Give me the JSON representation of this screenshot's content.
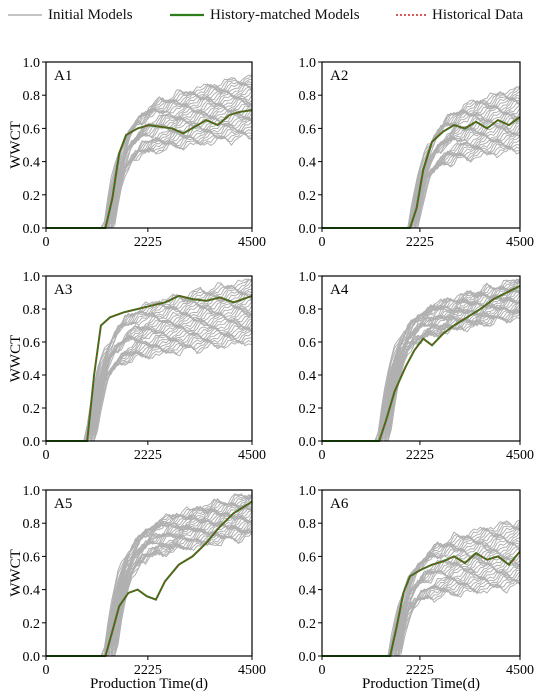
{
  "legend": {
    "initial": "Initial Models",
    "matched": "History-matched Models",
    "historical": "Historical Data"
  },
  "colors": {
    "initial": "#b0b0b0",
    "matched": "#2d7d1a",
    "historical": "#cc2222",
    "frame": "#000000"
  },
  "shared": {
    "ylabel": "WWCT",
    "xlabel": "Production Time(d)"
  },
  "chart_data": [
    {
      "type": "line",
      "id": "A1",
      "label": "A1",
      "xlim": [
        0,
        4500
      ],
      "ylim": [
        0,
        1.0
      ],
      "xticks": [
        0,
        2225,
        4500
      ],
      "yticks": [
        0.0,
        0.2,
        0.4,
        0.6,
        0.8,
        1.0
      ],
      "matched_x": [
        0,
        1300,
        1450,
        1600,
        1750,
        2000,
        2250,
        2500,
        2750,
        3000,
        3250,
        3500,
        3750,
        4000,
        4250,
        4500
      ],
      "matched_y": [
        0,
        0,
        0.18,
        0.45,
        0.56,
        0.6,
        0.62,
        0.61,
        0.6,
        0.57,
        0.61,
        0.65,
        0.62,
        0.68,
        0.7,
        0.71
      ],
      "ensemble_low": 0.55,
      "ensemble_high": 0.92,
      "onset_range": [
        1250,
        1500
      ]
    },
    {
      "type": "line",
      "id": "A2",
      "label": "A2",
      "xlim": [
        0,
        4500
      ],
      "ylim": [
        0,
        1.0
      ],
      "xticks": [
        0,
        2225,
        4500
      ],
      "yticks": [
        0.0,
        0.2,
        0.4,
        0.6,
        0.8,
        1.0
      ],
      "matched_x": [
        0,
        2000,
        2150,
        2300,
        2500,
        2750,
        3000,
        3250,
        3500,
        3750,
        4000,
        4250,
        4500
      ],
      "matched_y": [
        0,
        0,
        0.12,
        0.35,
        0.52,
        0.58,
        0.62,
        0.6,
        0.64,
        0.6,
        0.65,
        0.62,
        0.67
      ],
      "ensemble_low": 0.47,
      "ensemble_high": 0.85,
      "onset_range": [
        1950,
        2200
      ]
    },
    {
      "type": "line",
      "id": "A3",
      "label": "A3",
      "xlim": [
        0,
        4500
      ],
      "ylim": [
        0,
        1.0
      ],
      "xticks": [
        0,
        2225,
        4500
      ],
      "yticks": [
        0.0,
        0.2,
        0.4,
        0.6,
        0.8,
        1.0
      ],
      "matched_x": [
        0,
        900,
        1050,
        1200,
        1400,
        1700,
        2000,
        2300,
        2600,
        2900,
        3200,
        3500,
        3800,
        4100,
        4500
      ],
      "matched_y": [
        0,
        0,
        0.4,
        0.7,
        0.75,
        0.78,
        0.8,
        0.82,
        0.84,
        0.88,
        0.86,
        0.85,
        0.87,
        0.84,
        0.88
      ],
      "ensemble_low": 0.6,
      "ensemble_high": 0.98,
      "onset_range": [
        850,
        1100
      ]
    },
    {
      "type": "line",
      "id": "A4",
      "label": "A4",
      "xlim": [
        0,
        4500
      ],
      "ylim": [
        0,
        1.0
      ],
      "xticks": [
        0,
        2225,
        4500
      ],
      "yticks": [
        0.0,
        0.2,
        0.4,
        0.6,
        0.8,
        1.0
      ],
      "matched_x": [
        0,
        1300,
        1450,
        1650,
        1900,
        2100,
        2300,
        2500,
        2750,
        3000,
        3300,
        3600,
        3900,
        4200,
        4500
      ],
      "matched_y": [
        0,
        0,
        0.12,
        0.3,
        0.45,
        0.55,
        0.62,
        0.58,
        0.65,
        0.7,
        0.75,
        0.8,
        0.86,
        0.9,
        0.94
      ],
      "ensemble_low": 0.75,
      "ensemble_high": 0.98,
      "onset_range": [
        1250,
        1550
      ]
    },
    {
      "type": "line",
      "id": "A5",
      "label": "A5",
      "xlim": [
        0,
        4500
      ],
      "ylim": [
        0,
        1.0
      ],
      "xticks": [
        0,
        2225,
        4500
      ],
      "yticks": [
        0.0,
        0.2,
        0.4,
        0.6,
        0.8,
        1.0
      ],
      "matched_x": [
        0,
        1300,
        1450,
        1600,
        1800,
        2000,
        2200,
        2400,
        2600,
        2900,
        3200,
        3500,
        3800,
        4100,
        4500
      ],
      "matched_y": [
        0,
        0,
        0.15,
        0.3,
        0.38,
        0.4,
        0.36,
        0.34,
        0.45,
        0.55,
        0.6,
        0.68,
        0.78,
        0.86,
        0.93
      ],
      "ensemble_low": 0.72,
      "ensemble_high": 0.98,
      "onset_range": [
        1250,
        1550
      ]
    },
    {
      "type": "line",
      "id": "A6",
      "label": "A6",
      "xlim": [
        0,
        4500
      ],
      "ylim": [
        0,
        1.0
      ],
      "xticks": [
        0,
        2225,
        4500
      ],
      "yticks": [
        0.0,
        0.2,
        0.4,
        0.6,
        0.8,
        1.0
      ],
      "matched_x": [
        0,
        1550,
        1700,
        1850,
        2000,
        2250,
        2500,
        2750,
        3000,
        3250,
        3500,
        3750,
        4000,
        4250,
        4500
      ],
      "matched_y": [
        0,
        0,
        0.18,
        0.38,
        0.48,
        0.52,
        0.55,
        0.57,
        0.6,
        0.56,
        0.62,
        0.58,
        0.6,
        0.55,
        0.63
      ],
      "ensemble_low": 0.42,
      "ensemble_high": 0.82,
      "onset_range": [
        1500,
        1800
      ]
    }
  ]
}
